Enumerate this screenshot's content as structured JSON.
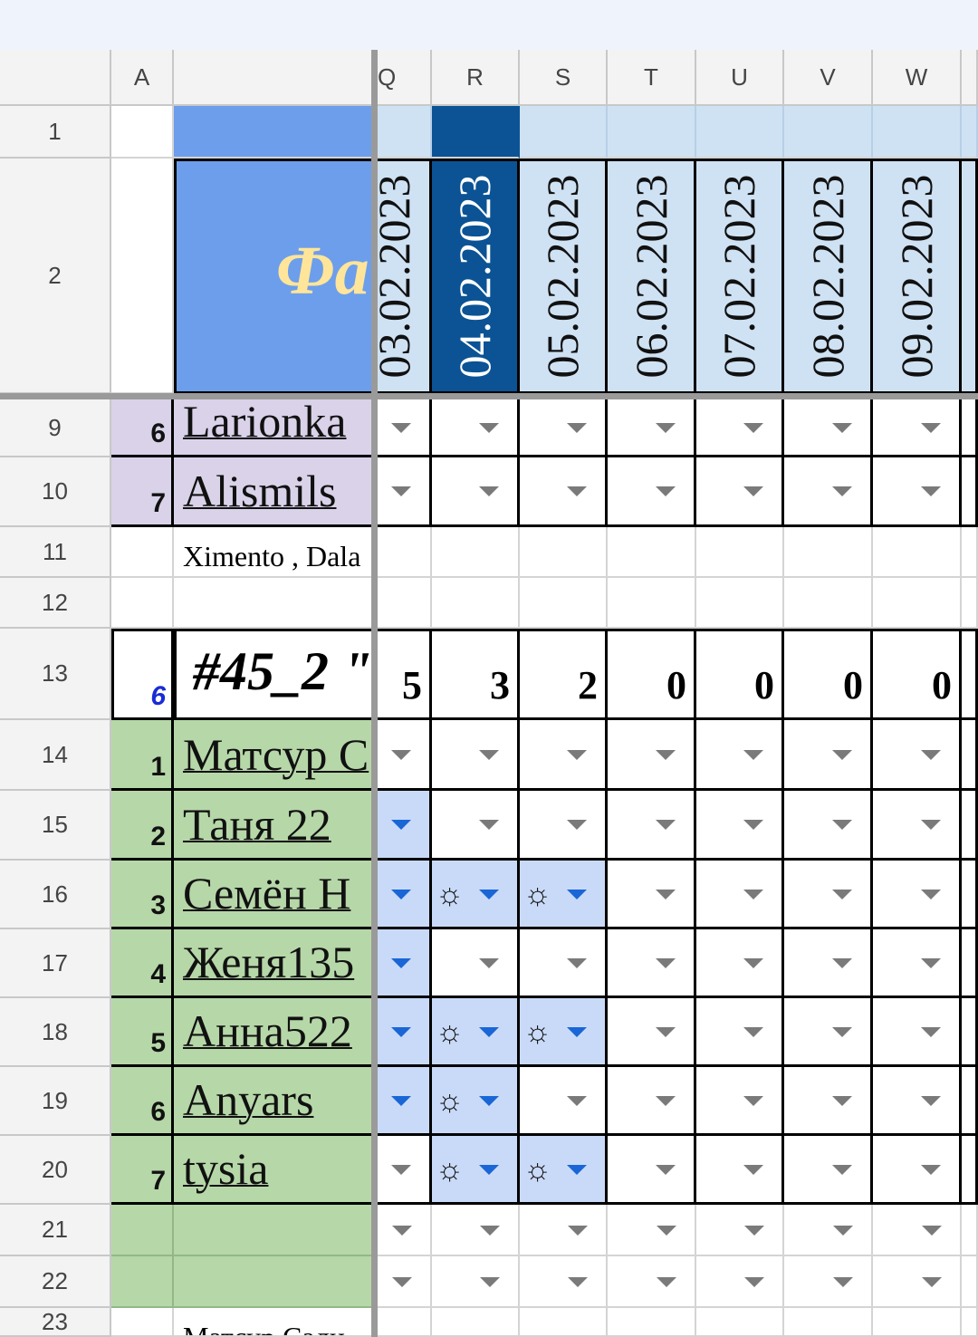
{
  "columns": [
    "A",
    "",
    "Q",
    "R",
    "S",
    "T",
    "U",
    "V",
    "W"
  ],
  "header": {
    "title_fragment": "Фа",
    "dates": [
      "03.02.2023",
      "04.02.2023",
      "05.02.2023",
      "06.02.2023",
      "07.02.2023",
      "08.02.2023",
      "09.02.2023"
    ],
    "selected_date_index": 1
  },
  "colors": {
    "title_bg": "#6d9eeb",
    "title_text": "#ffe599",
    "date_bg": "#cfe2f3",
    "selected_date_bg": "#0b5394",
    "lavender": "#d9d2e9",
    "green": "#b6d7a8",
    "selection_blue": "#c9daf8",
    "dropdown_blue": "#1a66d6"
  },
  "rows": [
    {
      "num": "9",
      "a": "6",
      "b": "Larionka",
      "style": "lavender",
      "cells": [
        "gray",
        "gray",
        "gray",
        "gray",
        "gray",
        "gray",
        "gray"
      ]
    },
    {
      "num": "10",
      "a": "7",
      "b": "Alismils",
      "style": "lavender",
      "cells": [
        "gray",
        "gray",
        "gray",
        "gray",
        "gray",
        "gray",
        "gray"
      ]
    },
    {
      "num": "11",
      "a": "",
      "b": "Ximento , Dala",
      "style": "note",
      "cells": [
        "",
        "",
        "",
        "",
        "",
        "",
        ""
      ]
    },
    {
      "num": "12",
      "a": "",
      "b": "",
      "style": "plain",
      "cells": [
        "",
        "",
        "",
        "",
        "",
        "",
        ""
      ]
    },
    {
      "num": "13",
      "a": "6",
      "b": "#45_2 \"",
      "style": "group",
      "scores": [
        "5",
        "3",
        "2",
        "0",
        "0",
        "0",
        "0"
      ]
    },
    {
      "num": "14",
      "a": "1",
      "b": "Матсур С",
      "style": "green",
      "cells": [
        "gray",
        "gray",
        "gray",
        "gray",
        "gray",
        "gray",
        "gray"
      ]
    },
    {
      "num": "15",
      "a": "2",
      "b": "Таня 22",
      "style": "green",
      "cells": [
        "blue",
        "gray",
        "gray",
        "gray",
        "gray",
        "gray",
        "gray"
      ]
    },
    {
      "num": "16",
      "a": "3",
      "b": "Семён Н",
      "style": "green",
      "cells": [
        "blue",
        "sun",
        "sun",
        "gray",
        "gray",
        "gray",
        "gray"
      ]
    },
    {
      "num": "17",
      "a": "4",
      "b": "Женя135",
      "style": "green",
      "cells": [
        "blue",
        "gray",
        "gray",
        "gray",
        "gray",
        "gray",
        "gray"
      ]
    },
    {
      "num": "18",
      "a": "5",
      "b": "Анна522",
      "style": "green",
      "cells": [
        "blue",
        "sun",
        "sun",
        "gray",
        "gray",
        "gray",
        "gray"
      ]
    },
    {
      "num": "19",
      "a": "6",
      "b": "Anyars",
      "style": "green",
      "cells": [
        "blue",
        "sun",
        "gray",
        "gray",
        "gray",
        "gray",
        "gray"
      ]
    },
    {
      "num": "20",
      "a": "7",
      "b": "tysia",
      "style": "green",
      "cells": [
        "gray",
        "sun",
        "sun",
        "gray",
        "gray",
        "gray",
        "gray"
      ]
    },
    {
      "num": "21",
      "a": "",
      "b": "",
      "style": "greenempty",
      "cells": [
        "gray",
        "gray",
        "gray",
        "gray",
        "gray",
        "gray",
        "gray"
      ]
    },
    {
      "num": "22",
      "a": "",
      "b": "",
      "style": "greenempty",
      "cells": [
        "gray",
        "gray",
        "gray",
        "gray",
        "gray",
        "gray",
        "gray"
      ]
    },
    {
      "num": "23",
      "a": "",
      "b": "Матсур Сали",
      "style": "note",
      "cells": [
        "",
        "",
        "",
        "",
        "",
        "",
        ""
      ]
    }
  ]
}
